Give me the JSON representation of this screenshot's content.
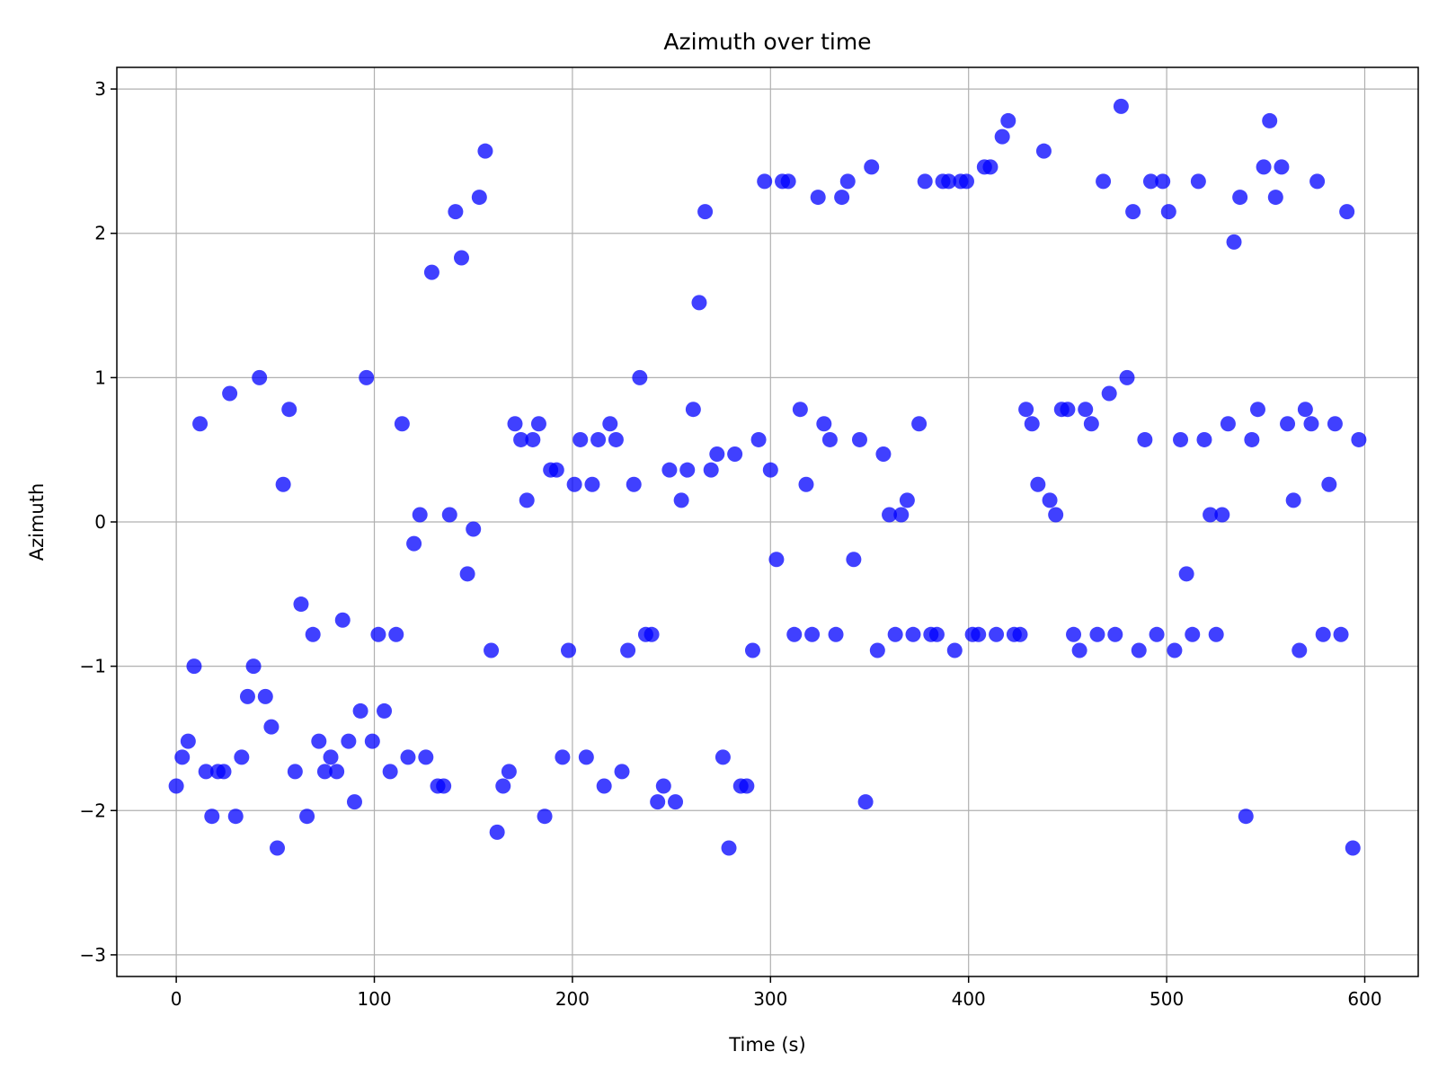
{
  "chart_data": {
    "type": "scatter",
    "title": "Azimuth over time",
    "xlabel": "Time (s)",
    "ylabel": "Azimuth",
    "xlim": [
      -30,
      627
    ],
    "ylim": [
      -3.15,
      3.15
    ],
    "xticks": [
      0,
      100,
      200,
      300,
      400,
      500,
      600
    ],
    "yticks": [
      -3,
      -2,
      -1,
      0,
      1,
      2,
      3
    ],
    "ytick_labels": [
      "−3",
      "−2",
      "−1",
      "0",
      "1",
      "2",
      "3"
    ],
    "grid": true,
    "marker_color": "#0000ff",
    "marker_alpha": 0.75,
    "points": [
      [
        0,
        -1.83
      ],
      [
        3,
        -1.63
      ],
      [
        6,
        -1.52
      ],
      [
        9,
        -1.0
      ],
      [
        12,
        0.68
      ],
      [
        15,
        -1.73
      ],
      [
        18,
        -2.04
      ],
      [
        21,
        -1.73
      ],
      [
        24,
        -1.73
      ],
      [
        27,
        0.89
      ],
      [
        30,
        -2.04
      ],
      [
        33,
        -1.63
      ],
      [
        36,
        -1.21
      ],
      [
        39,
        -1.0
      ],
      [
        42,
        1.0
      ],
      [
        45,
        -1.21
      ],
      [
        48,
        -1.42
      ],
      [
        51,
        -2.26
      ],
      [
        54,
        0.26
      ],
      [
        57,
        0.78
      ],
      [
        60,
        -1.73
      ],
      [
        63,
        -0.57
      ],
      [
        66,
        -2.04
      ],
      [
        69,
        -0.78
      ],
      [
        72,
        -1.52
      ],
      [
        75,
        -1.73
      ],
      [
        78,
        -1.63
      ],
      [
        81,
        -1.73
      ],
      [
        84,
        -0.68
      ],
      [
        87,
        -1.52
      ],
      [
        90,
        -1.94
      ],
      [
        93,
        -1.31
      ],
      [
        96,
        1.0
      ],
      [
        99,
        -1.52
      ],
      [
        102,
        -0.78
      ],
      [
        105,
        -1.31
      ],
      [
        108,
        -1.73
      ],
      [
        111,
        -0.78
      ],
      [
        114,
        0.68
      ],
      [
        117,
        -1.63
      ],
      [
        120,
        -0.15
      ],
      [
        123,
        0.05
      ],
      [
        126,
        -1.63
      ],
      [
        129,
        1.73
      ],
      [
        132,
        -1.83
      ],
      [
        135,
        -1.83
      ],
      [
        138,
        0.05
      ],
      [
        141,
        2.15
      ],
      [
        144,
        1.83
      ],
      [
        147,
        -0.36
      ],
      [
        150,
        -0.05
      ],
      [
        153,
        2.25
      ],
      [
        156,
        2.57
      ],
      [
        159,
        -0.89
      ],
      [
        162,
        -2.15
      ],
      [
        165,
        -1.83
      ],
      [
        168,
        -1.73
      ],
      [
        171,
        0.68
      ],
      [
        174,
        0.57
      ],
      [
        177,
        0.15
      ],
      [
        180,
        0.57
      ],
      [
        183,
        0.68
      ],
      [
        186,
        -2.04
      ],
      [
        189,
        0.36
      ],
      [
        192,
        0.36
      ],
      [
        195,
        -1.63
      ],
      [
        198,
        -0.89
      ],
      [
        201,
        0.26
      ],
      [
        204,
        0.57
      ],
      [
        207,
        -1.63
      ],
      [
        210,
        0.26
      ],
      [
        213,
        0.57
      ],
      [
        216,
        -1.83
      ],
      [
        219,
        0.68
      ],
      [
        222,
        0.57
      ],
      [
        225,
        -1.73
      ],
      [
        228,
        -0.89
      ],
      [
        231,
        0.26
      ],
      [
        234,
        1.0
      ],
      [
        237,
        -0.78
      ],
      [
        240,
        -0.78
      ],
      [
        243,
        -1.94
      ],
      [
        246,
        -1.83
      ],
      [
        249,
        0.36
      ],
      [
        252,
        -1.94
      ],
      [
        255,
        0.15
      ],
      [
        258,
        0.36
      ],
      [
        261,
        0.78
      ],
      [
        264,
        1.52
      ],
      [
        267,
        2.15
      ],
      [
        270,
        0.36
      ],
      [
        273,
        0.47
      ],
      [
        276,
        -1.63
      ],
      [
        279,
        -2.26
      ],
      [
        282,
        0.47
      ],
      [
        285,
        -1.83
      ],
      [
        288,
        -1.83
      ],
      [
        291,
        -0.89
      ],
      [
        294,
        0.57
      ],
      [
        297,
        2.36
      ],
      [
        300,
        0.36
      ],
      [
        303,
        -0.26
      ],
      [
        306,
        2.36
      ],
      [
        309,
        2.36
      ],
      [
        312,
        -0.78
      ],
      [
        315,
        0.78
      ],
      [
        318,
        0.26
      ],
      [
        321,
        -0.78
      ],
      [
        324,
        2.25
      ],
      [
        327,
        0.68
      ],
      [
        330,
        0.57
      ],
      [
        333,
        -0.78
      ],
      [
        336,
        2.25
      ],
      [
        339,
        2.36
      ],
      [
        342,
        -0.26
      ],
      [
        345,
        0.57
      ],
      [
        348,
        -1.94
      ],
      [
        351,
        2.46
      ],
      [
        354,
        -0.89
      ],
      [
        357,
        0.47
      ],
      [
        360,
        0.05
      ],
      [
        363,
        -0.78
      ],
      [
        366,
        0.05
      ],
      [
        369,
        0.15
      ],
      [
        372,
        -0.78
      ],
      [
        375,
        0.68
      ],
      [
        378,
        2.36
      ],
      [
        381,
        -0.78
      ],
      [
        384,
        -0.78
      ],
      [
        387,
        2.36
      ],
      [
        390,
        2.36
      ],
      [
        393,
        -0.89
      ],
      [
        396,
        2.36
      ],
      [
        399,
        2.36
      ],
      [
        402,
        -0.78
      ],
      [
        405,
        -0.78
      ],
      [
        408,
        2.46
      ],
      [
        411,
        2.46
      ],
      [
        414,
        -0.78
      ],
      [
        417,
        2.67
      ],
      [
        420,
        2.78
      ],
      [
        423,
        -0.78
      ],
      [
        426,
        -0.78
      ],
      [
        429,
        0.78
      ],
      [
        432,
        0.68
      ],
      [
        435,
        0.26
      ],
      [
        438,
        2.57
      ],
      [
        441,
        0.15
      ],
      [
        444,
        0.05
      ],
      [
        447,
        0.78
      ],
      [
        450,
        0.78
      ],
      [
        453,
        -0.78
      ],
      [
        456,
        -0.89
      ],
      [
        459,
        0.78
      ],
      [
        462,
        0.68
      ],
      [
        465,
        -0.78
      ],
      [
        468,
        2.36
      ],
      [
        471,
        0.89
      ],
      [
        474,
        -0.78
      ],
      [
        477,
        2.88
      ],
      [
        480,
        1.0
      ],
      [
        483,
        2.15
      ],
      [
        486,
        -0.89
      ],
      [
        489,
        0.57
      ],
      [
        492,
        2.36
      ],
      [
        495,
        -0.78
      ],
      [
        498,
        2.36
      ],
      [
        501,
        2.15
      ],
      [
        504,
        -0.89
      ],
      [
        507,
        0.57
      ],
      [
        510,
        -0.36
      ],
      [
        513,
        -0.78
      ],
      [
        516,
        2.36
      ],
      [
        519,
        0.57
      ],
      [
        522,
        0.05
      ],
      [
        525,
        -0.78
      ],
      [
        528,
        0.05
      ],
      [
        531,
        0.68
      ],
      [
        534,
        1.94
      ],
      [
        537,
        2.25
      ],
      [
        540,
        -2.04
      ],
      [
        543,
        0.57
      ],
      [
        546,
        0.78
      ],
      [
        549,
        2.46
      ],
      [
        552,
        2.78
      ],
      [
        555,
        2.25
      ],
      [
        558,
        2.46
      ],
      [
        561,
        0.68
      ],
      [
        564,
        0.15
      ],
      [
        567,
        -0.89
      ],
      [
        570,
        0.78
      ],
      [
        573,
        0.68
      ],
      [
        576,
        2.36
      ],
      [
        579,
        -0.78
      ],
      [
        582,
        0.26
      ],
      [
        585,
        0.68
      ],
      [
        588,
        -0.78
      ],
      [
        591,
        2.15
      ],
      [
        594,
        -2.26
      ],
      [
        597,
        0.57
      ]
    ]
  }
}
